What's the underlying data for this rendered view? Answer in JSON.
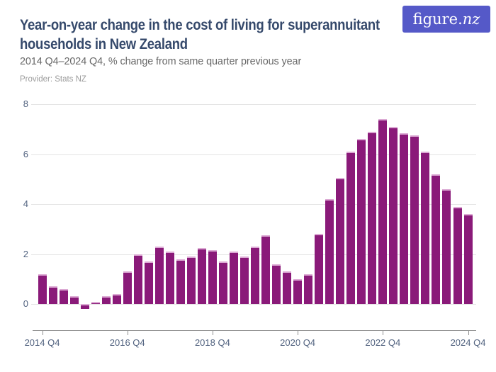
{
  "header": {
    "title_lines": [
      "Year-on-year change in the cost of living for superannuitant",
      "households in New Zealand"
    ],
    "subtitle": "2014 Q4–2024 Q4, % change from same quarter previous year",
    "provider": "Provider: Stats NZ",
    "logo": {
      "part1": "figure.",
      "part2": "nz"
    }
  },
  "colors": {
    "bar": "#8a1a79",
    "bar_top_edge": "#dcaad4",
    "title": "#35496b",
    "subtitle": "#686868",
    "provider": "#9b9b9b",
    "axis_label": "#51627f",
    "gridline": "#e4e4e4",
    "axis_line": "#8f8f8f",
    "logo_bg": "#5559c8",
    "logo_text": "#ffffff",
    "background": "#ffffff"
  },
  "chart_data": {
    "type": "bar",
    "title": "Year-on-year change in the cost of living for superannuitant households in New Zealand",
    "subtitle": "2014 Q4–2024 Q4, % change from same quarter previous year",
    "provider": "Stats NZ",
    "xlabel": "",
    "ylabel": "% change from same quarter previous year",
    "ylim": [
      -0.4,
      8
    ],
    "yticks": [
      0,
      2,
      4,
      6,
      8
    ],
    "grid": "horizontal",
    "legend": "none",
    "x": [
      "2014 Q4",
      "2015 Q1",
      "2015 Q2",
      "2015 Q3",
      "2015 Q4",
      "2016 Q1",
      "2016 Q2",
      "2016 Q3",
      "2016 Q4",
      "2017 Q1",
      "2017 Q2",
      "2017 Q3",
      "2017 Q4",
      "2018 Q1",
      "2018 Q2",
      "2018 Q3",
      "2018 Q4",
      "2019 Q1",
      "2019 Q2",
      "2019 Q3",
      "2019 Q4",
      "2020 Q1",
      "2020 Q2",
      "2020 Q3",
      "2020 Q4",
      "2021 Q1",
      "2021 Q2",
      "2021 Q3",
      "2021 Q4",
      "2022 Q1",
      "2022 Q2",
      "2022 Q3",
      "2022 Q4",
      "2023 Q1",
      "2023 Q2",
      "2023 Q3",
      "2023 Q4",
      "2024 Q1",
      "2024 Q2",
      "2024 Q3",
      "2024 Q4"
    ],
    "values": [
      1.2,
      0.7,
      0.6,
      0.3,
      -0.2,
      0.1,
      0.3,
      0.4,
      1.3,
      2.0,
      1.7,
      2.3,
      2.1,
      1.8,
      1.9,
      2.25,
      2.15,
      1.7,
      2.1,
      1.9,
      2.3,
      2.75,
      1.6,
      1.3,
      1.0,
      1.2,
      2.8,
      4.2,
      5.05,
      6.1,
      6.6,
      6.9,
      7.4,
      7.1,
      6.85,
      6.75,
      6.1,
      5.2,
      4.6,
      3.9,
      3.6
    ],
    "x_tick_labels": [
      "2014 Q4",
      "2016 Q4",
      "2018 Q4",
      "2020 Q4",
      "2022 Q4",
      "2024 Q4"
    ],
    "x_tick_indices": [
      0,
      8,
      16,
      24,
      32,
      40
    ]
  }
}
